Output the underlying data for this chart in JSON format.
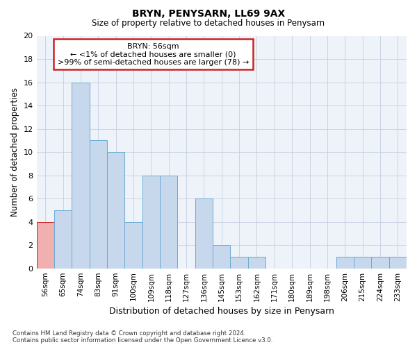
{
  "title": "BRYN, PENYSARN, LL69 9AX",
  "subtitle": "Size of property relative to detached houses in Penysarn",
  "xlabel": "Distribution of detached houses by size in Penysarn",
  "ylabel": "Number of detached properties",
  "categories": [
    "56sqm",
    "65sqm",
    "74sqm",
    "83sqm",
    "91sqm",
    "100sqm",
    "109sqm",
    "118sqm",
    "127sqm",
    "136sqm",
    "145sqm",
    "153sqm",
    "162sqm",
    "171sqm",
    "180sqm",
    "189sqm",
    "198sqm",
    "206sqm",
    "215sqm",
    "224sqm",
    "233sqm"
  ],
  "values": [
    4,
    5,
    16,
    11,
    10,
    4,
    8,
    8,
    0,
    6,
    2,
    1,
    1,
    0,
    0,
    0,
    0,
    1,
    1,
    1,
    1
  ],
  "highlight_index": 0,
  "bar_color": "#c8d8ec",
  "bar_edge_color": "#6aaad4",
  "highlight_bar_color": "#f0b0b0",
  "highlight_bar_edge_color": "#cc2222",
  "annotation_box_edge_color": "#cc2222",
  "annotation_text_line1": "BRYN: 56sqm",
  "annotation_text_line2": "← <1% of detached houses are smaller (0)",
  "annotation_text_line3": ">99% of semi-detached houses are larger (78) →",
  "ylim": [
    0,
    20
  ],
  "yticks": [
    0,
    2,
    4,
    6,
    8,
    10,
    12,
    14,
    16,
    18,
    20
  ],
  "background_color": "#eef3f9",
  "grid_color": "#c5cfe0",
  "title_fontsize": 10,
  "subtitle_fontsize": 9,
  "footer": "Contains HM Land Registry data © Crown copyright and database right 2024.\nContains public sector information licensed under the Open Government Licence v3.0."
}
